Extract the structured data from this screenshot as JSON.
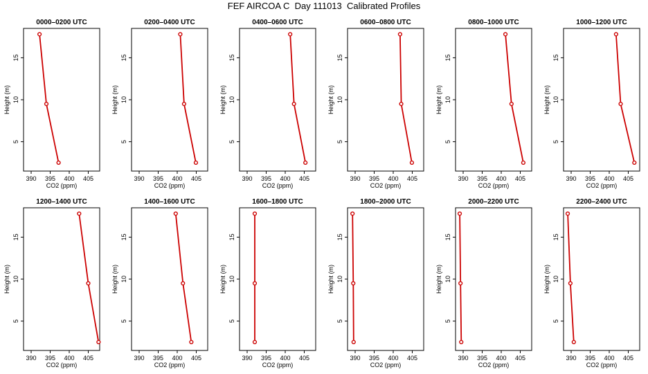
{
  "title": "FEF AIRCOA C  Day 111013  Calibrated Profiles",
  "colors": {
    "line": "#cc0000",
    "axis": "#000000"
  },
  "chart_data": [
    {
      "type": "line",
      "title": "0000–0200 UTC",
      "xlabel": "CO2 (ppm)",
      "ylabel": "Height (m)",
      "xlim": [
        388,
        408
      ],
      "ylim": [
        1.5,
        18.5
      ],
      "xticks": [
        390,
        395,
        400,
        405
      ],
      "yticks": [
        5,
        10,
        15
      ],
      "grid": false,
      "x": [
        392.2,
        394.0,
        397.2
      ],
      "y": [
        17.8,
        9.5,
        2.5
      ]
    },
    {
      "type": "line",
      "title": "0200–0400 UTC",
      "xlabel": "CO2 (ppm)",
      "ylabel": "Height (m)",
      "xlim": [
        388,
        408
      ],
      "ylim": [
        1.5,
        18.5
      ],
      "xticks": [
        390,
        395,
        400,
        405
      ],
      "yticks": [
        5,
        10,
        15
      ],
      "grid": false,
      "x": [
        400.8,
        401.8,
        404.9
      ],
      "y": [
        17.8,
        9.5,
        2.5
      ]
    },
    {
      "type": "line",
      "title": "0400–0600 UTC",
      "xlabel": "CO2 (ppm)",
      "ylabel": "Height (m)",
      "xlim": [
        388,
        408
      ],
      "ylim": [
        1.5,
        18.5
      ],
      "xticks": [
        390,
        395,
        400,
        405
      ],
      "yticks": [
        5,
        10,
        15
      ],
      "grid": false,
      "x": [
        401.3,
        402.3,
        405.3
      ],
      "y": [
        17.8,
        9.5,
        2.5
      ]
    },
    {
      "type": "line",
      "title": "0600–0800 UTC",
      "xlabel": "CO2 (ppm)",
      "ylabel": "Height (m)",
      "xlim": [
        388,
        408
      ],
      "ylim": [
        1.5,
        18.5
      ],
      "xticks": [
        390,
        395,
        400,
        405
      ],
      "yticks": [
        5,
        10,
        15
      ],
      "grid": false,
      "x": [
        401.8,
        402.1,
        404.9
      ],
      "y": [
        17.8,
        9.5,
        2.5
      ]
    },
    {
      "type": "line",
      "title": "0800–1000 UTC",
      "xlabel": "CO2 (ppm)",
      "ylabel": "Height (m)",
      "xlim": [
        388,
        408
      ],
      "ylim": [
        1.5,
        18.5
      ],
      "xticks": [
        390,
        395,
        400,
        405
      ],
      "yticks": [
        5,
        10,
        15
      ],
      "grid": false,
      "x": [
        401.1,
        402.7,
        405.8
      ],
      "y": [
        17.8,
        9.5,
        2.5
      ]
    },
    {
      "type": "line",
      "title": "1000–1200 UTC",
      "xlabel": "CO2 (ppm)",
      "ylabel": "Height (m)",
      "xlim": [
        388,
        408
      ],
      "ylim": [
        1.5,
        18.5
      ],
      "xticks": [
        390,
        395,
        400,
        405
      ],
      "yticks": [
        5,
        10,
        15
      ],
      "grid": false,
      "x": [
        401.8,
        403.0,
        406.6
      ],
      "y": [
        17.8,
        9.5,
        2.5
      ]
    },
    {
      "type": "line",
      "title": "1200–1400 UTC",
      "xlabel": "CO2 (ppm)",
      "ylabel": "Height (m)",
      "xlim": [
        388,
        408
      ],
      "ylim": [
        1.5,
        18.5
      ],
      "xticks": [
        390,
        395,
        400,
        405
      ],
      "yticks": [
        5,
        10,
        15
      ],
      "grid": false,
      "x": [
        402.6,
        405.0,
        407.7
      ],
      "y": [
        17.8,
        9.5,
        2.5
      ]
    },
    {
      "type": "line",
      "title": "1400–1600 UTC",
      "xlabel": "CO2 (ppm)",
      "ylabel": "Height (m)",
      "xlim": [
        388,
        408
      ],
      "ylim": [
        1.5,
        18.5
      ],
      "xticks": [
        390,
        395,
        400,
        405
      ],
      "yticks": [
        5,
        10,
        15
      ],
      "grid": false,
      "x": [
        399.6,
        401.5,
        403.7
      ],
      "y": [
        17.8,
        9.5,
        2.5
      ]
    },
    {
      "type": "line",
      "title": "1600–1800 UTC",
      "xlabel": "CO2 (ppm)",
      "ylabel": "Height (m)",
      "xlim": [
        388,
        408
      ],
      "ylim": [
        1.5,
        18.5
      ],
      "xticks": [
        390,
        395,
        400,
        405
      ],
      "yticks": [
        5,
        10,
        15
      ],
      "grid": false,
      "x": [
        392.0,
        392.0,
        392.0
      ],
      "y": [
        17.8,
        9.5,
        2.5
      ]
    },
    {
      "type": "line",
      "title": "1800–2000 UTC",
      "xlabel": "CO2 (ppm)",
      "ylabel": "Height (m)",
      "xlim": [
        388,
        408
      ],
      "ylim": [
        1.5,
        18.5
      ],
      "xticks": [
        390,
        395,
        400,
        405
      ],
      "yticks": [
        5,
        10,
        15
      ],
      "grid": false,
      "x": [
        389.3,
        389.5,
        389.6
      ],
      "y": [
        17.8,
        9.5,
        2.5
      ]
    },
    {
      "type": "line",
      "title": "2000–2200 UTC",
      "xlabel": "CO2 (ppm)",
      "ylabel": "Height (m)",
      "xlim": [
        388,
        408
      ],
      "ylim": [
        1.5,
        18.5
      ],
      "xticks": [
        390,
        395,
        400,
        405
      ],
      "yticks": [
        5,
        10,
        15
      ],
      "grid": false,
      "x": [
        389.1,
        389.3,
        389.5
      ],
      "y": [
        17.8,
        9.5,
        2.5
      ]
    },
    {
      "type": "line",
      "title": "2200–2400 UTC",
      "xlabel": "CO2 (ppm)",
      "ylabel": "Height (m)",
      "xlim": [
        388,
        408
      ],
      "ylim": [
        1.5,
        18.5
      ],
      "xticks": [
        390,
        395,
        400,
        405
      ],
      "yticks": [
        5,
        10,
        15
      ],
      "grid": false,
      "x": [
        389.1,
        389.8,
        390.7
      ],
      "y": [
        17.8,
        9.5,
        2.5
      ]
    }
  ]
}
